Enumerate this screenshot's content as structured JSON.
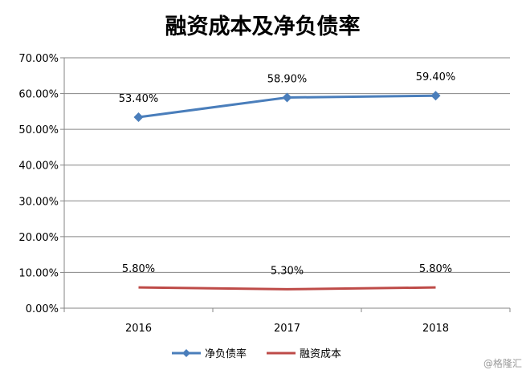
{
  "chart_data": {
    "type": "line",
    "title": "融资成本及净负债率",
    "categories": [
      "2016",
      "2017",
      "2018"
    ],
    "series": [
      {
        "name": "净负债率",
        "values": [
          53.4,
          58.9,
          59.4
        ],
        "labels": [
          "53.40%",
          "58.90%",
          "59.40%"
        ],
        "color": "#4a7ebb",
        "marker": "diamond"
      },
      {
        "name": "融资成本",
        "values": [
          5.8,
          5.3,
          5.8
        ],
        "labels": [
          "5.80%",
          "5.30%",
          "5.80%"
        ],
        "color": "#be4b48",
        "marker": "none"
      }
    ],
    "yticks": [
      "0.00%",
      "10.00%",
      "20.00%",
      "30.00%",
      "40.00%",
      "50.00%",
      "60.00%",
      "70.00%"
    ],
    "ylim": [
      0,
      70
    ],
    "grid": true,
    "legend_position": "bottom"
  },
  "watermark": "@格隆汇"
}
